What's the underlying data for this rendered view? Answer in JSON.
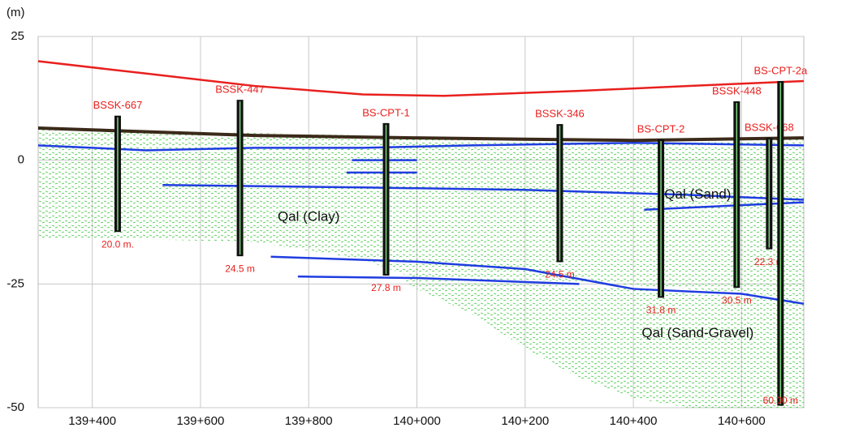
{
  "chart_data": {
    "type": "section",
    "y_label": "(m)",
    "ylim": [
      -50,
      25
    ],
    "yticks": [
      -50,
      -25,
      0,
      25
    ],
    "xlim": [
      139300,
      140715
    ],
    "xticks": [
      {
        "value": 139400,
        "label": "139+400"
      },
      {
        "value": 139600,
        "label": "139+600"
      },
      {
        "value": 139800,
        "label": "139+800"
      },
      {
        "value": 140000,
        "label": "140+000"
      },
      {
        "value": 140200,
        "label": "140+200"
      },
      {
        "value": 140400,
        "label": "140+400"
      },
      {
        "value": 140600,
        "label": "140+600"
      }
    ],
    "grid": true,
    "zones": [
      {
        "color": "#3ec43e",
        "x": [
          139300,
          139500,
          139700,
          139900,
          140000,
          140100,
          140300,
          140500,
          140715
        ],
        "upper": [
          6.5,
          6,
          5.5,
          5,
          4.5,
          4.5,
          4,
          4,
          4.5
        ],
        "lower": [
          -16,
          -16,
          -16.5,
          -20,
          -24,
          -24,
          -24.5,
          -26,
          -28
        ]
      },
      {
        "color": "#3ec43e",
        "x": [
          139980,
          140100,
          140200,
          140300,
          140400,
          140500,
          140600,
          140715
        ],
        "upper": [
          -24,
          -24.5,
          -25,
          -25.5,
          -26,
          -27,
          -27.5,
          -28
        ],
        "lower": [
          -25,
          -31,
          -38,
          -44,
          -48,
          -50,
          -50,
          -50
        ]
      }
    ],
    "boundaries": [
      {
        "color": "#1f3de0",
        "x": [
          139300,
          139500,
          139700,
          139900,
          140100,
          140400,
          140715
        ],
        "values": [
          3,
          2,
          2.5,
          2.5,
          3,
          3.5,
          3
        ]
      },
      {
        "color": "#1f3de0",
        "x": [
          139530,
          139900,
          140200,
          140500,
          140715
        ],
        "values": [
          -5,
          -5.5,
          -6,
          -7,
          -8
        ]
      },
      {
        "color": "#1f3de0",
        "x": [
          139730,
          140000,
          140200,
          140400,
          140600,
          140715
        ],
        "values": [
          -19.5,
          -20.5,
          -22,
          -26,
          -27,
          -29
        ]
      },
      {
        "color": "#1f3de0",
        "x": [
          139780,
          140000,
          140300
        ],
        "values": [
          -23.5,
          -23.8,
          -25
        ]
      },
      {
        "color": "#1f3de0",
        "x": [
          139880,
          140000
        ],
        "values": [
          0,
          0
        ]
      },
      {
        "color": "#1f3de0",
        "x": [
          139870,
          140000
        ],
        "values": [
          -2.5,
          -2.5
        ]
      },
      {
        "color": "#1f3de0",
        "x": [
          140420,
          140715
        ],
        "values": [
          -10,
          -8.5
        ]
      }
    ],
    "ground": {
      "color": "#3b2a1a",
      "x": [
        139300,
        139700,
        140000,
        140400,
        140715
      ],
      "values": [
        6.5,
        5,
        4.5,
        4,
        4.5
      ]
    },
    "surface": {
      "color": "#e8201e",
      "x": [
        139300,
        139500,
        139700,
        139900,
        140050,
        140300,
        140500,
        140715
      ],
      "values": [
        20,
        17.5,
        15,
        13.3,
        13,
        14,
        15,
        16
      ]
    },
    "boreholes": [
      {
        "name": "BSSK-667",
        "x": 139447,
        "top": 9,
        "bottom": -14.5,
        "depth_label": "20.0 m."
      },
      {
        "name": "BSSK-447",
        "x": 139673,
        "top": 12.2,
        "bottom": -19.4,
        "depth_label": "24.5 m"
      },
      {
        "name": "BS-CPT-1",
        "x": 139943,
        "top": 7.5,
        "bottom": -23.3,
        "depth_label": "27.8 m"
      },
      {
        "name": "BSSK-346",
        "x": 140264,
        "top": 7.3,
        "bottom": -20.6,
        "depth_label": "24.5 m"
      },
      {
        "name": "BS-CPT-2",
        "x": 140451,
        "top": 4.2,
        "bottom": -27.8,
        "depth_label": "31.8 m"
      },
      {
        "name": "BSSK-448",
        "x": 140591,
        "top": 11.9,
        "bottom": -25.8,
        "depth_label": "30.5 m"
      },
      {
        "name": "BSSK-668",
        "x": 140651,
        "top": 4.5,
        "bottom": -18,
        "depth_label": "22.3 m"
      },
      {
        "name": "BS-CPT-2a",
        "x": 140672,
        "top": 16,
        "bottom": -49.6,
        "depth_label": "60.00 m"
      }
    ],
    "annotations": [
      {
        "text": "Qal (Clay)",
        "x": 139800,
        "y": -11.5
      },
      {
        "text": "Qal (Sand)",
        "x": 140519,
        "y": -7
      },
      {
        "text": "Qal (Sand-Gravel)",
        "x": 140519,
        "y": -35
      }
    ]
  }
}
